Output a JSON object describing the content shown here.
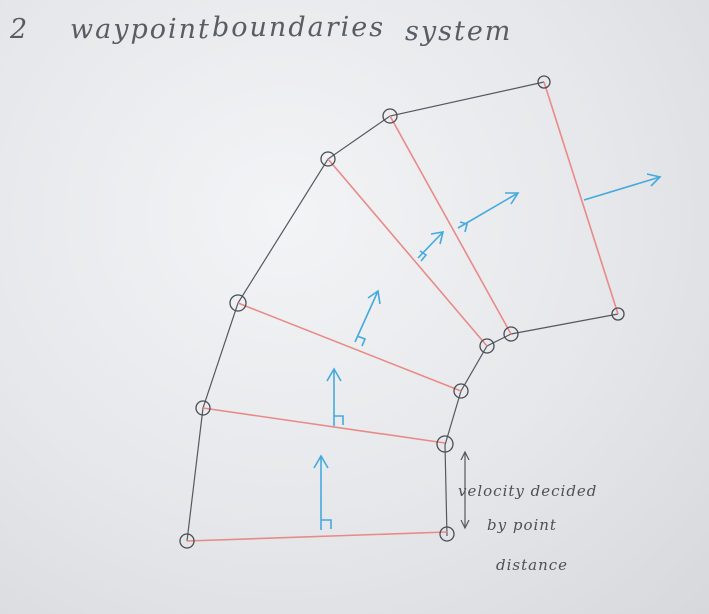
{
  "title": {
    "word1": "2",
    "word2": "waypoint",
    "word3": "boundaries",
    "word4": "system"
  },
  "annotation": {
    "line1": "velocity decided",
    "line2": "by point",
    "line3": "distance"
  }
}
